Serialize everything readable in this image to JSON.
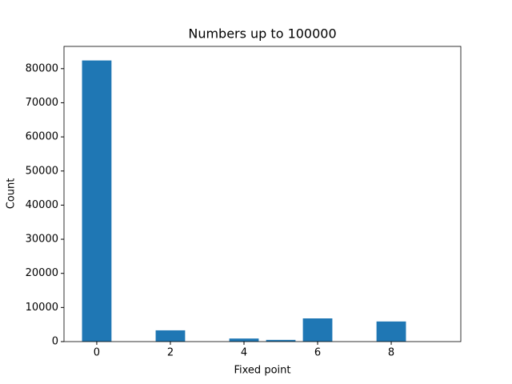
{
  "chart_data": {
    "type": "bar",
    "title": "Numbers up to 100000",
    "xlabel": "Fixed point",
    "ylabel": "Count",
    "x": [
      0,
      1,
      2,
      3,
      4,
      5,
      6,
      7,
      8,
      9
    ],
    "values": [
      82400,
      0,
      3300,
      0,
      900,
      500,
      6800,
      0,
      5900,
      0
    ],
    "color": "#1f77b4",
    "xlim": [
      -0.89,
      9.89
    ],
    "xticks": [
      0,
      2,
      4,
      6,
      8
    ],
    "ylim": [
      0,
      86520
    ],
    "yticks": [
      0,
      10000,
      20000,
      30000,
      40000,
      50000,
      60000,
      70000,
      80000
    ]
  }
}
